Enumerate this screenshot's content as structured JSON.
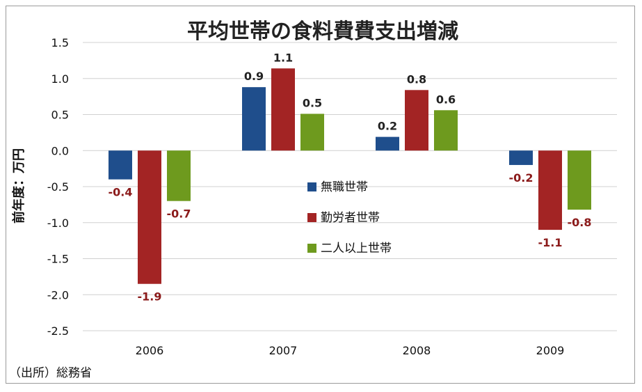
{
  "chart_data": {
    "type": "bar",
    "title": "平均世帯の食料費費支出増減",
    "ylabel": "前年度：万円",
    "xlabel": "",
    "ylim": [
      -2.5,
      1.5
    ],
    "ytick_labels": [
      "1.5",
      "1.0",
      "0.5",
      "0.0",
      "-0.5",
      "-1.0",
      "-1.5",
      "-2.0",
      "-2.5"
    ],
    "ytick_values": [
      1.5,
      1.0,
      0.5,
      0.0,
      -0.5,
      -1.0,
      -1.5,
      -2.0,
      -2.5
    ],
    "grid": true,
    "categories": [
      "2006",
      "2007",
      "2008",
      "2009"
    ],
    "series": [
      {
        "name": "無職世帯",
        "color": "#1f4e8c",
        "values": [
          -0.4,
          0.88,
          0.19,
          -0.2
        ],
        "labels": [
          "-0.4",
          "0.9",
          "0.2",
          "-0.2"
        ]
      },
      {
        "name": "勤労者世帯",
        "color": "#a32424",
        "values": [
          -1.85,
          1.14,
          0.84,
          -1.1
        ],
        "labels": [
          "-1.9",
          "1.1",
          "0.8",
          "-1.1"
        ]
      },
      {
        "name": "二人以上世帯",
        "color": "#6e9a1e",
        "values": [
          -0.7,
          0.51,
          0.56,
          -0.82
        ],
        "labels": [
          "-0.7",
          "0.5",
          "0.6",
          "-0.8"
        ]
      }
    ],
    "legend_position": "center",
    "source": "（出所）総務省"
  }
}
